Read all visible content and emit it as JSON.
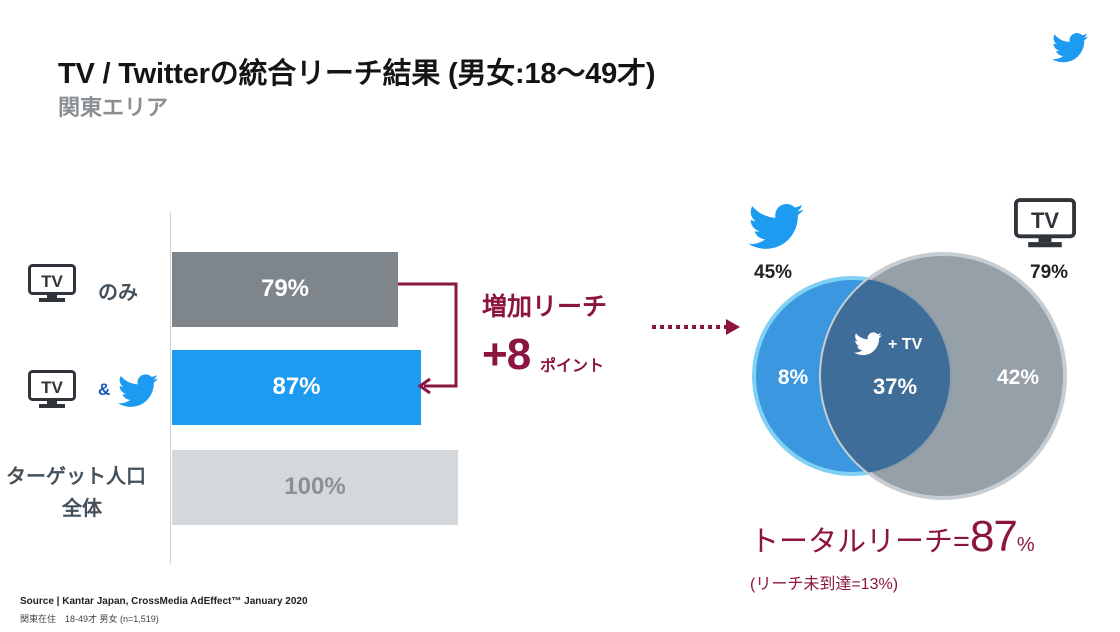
{
  "header": {
    "title": "TV / Twitterの統合リーチ結果 (男女:18〜49才)",
    "subtitle": "関東エリア"
  },
  "icons": {
    "brand": "twitter-bird-icon",
    "tv": "tv-icon"
  },
  "colors": {
    "twitter_blue": "#1d9bf0",
    "tv_gray": "#7e868c",
    "target_gray": "#d4d8db",
    "accent": "#8b1540",
    "venn_twitter": "#3b98e0",
    "venn_tv": "#8e99a2",
    "venn_overlap": "#3f6d99"
  },
  "chart_data": [
    {
      "type": "bar",
      "orientation": "horizontal",
      "categories": [
        "TV のみ",
        "TV & Twitter",
        "ターゲット人口全体"
      ],
      "values": [
        79,
        87,
        100
      ],
      "value_labels": [
        "79%",
        "87%",
        "100%"
      ],
      "category_text": {
        "tv_only": "のみ",
        "tv_twitter_amp": "&",
        "target_line1": "ターゲット人口",
        "target_line2": "全体"
      },
      "xlim": [
        0,
        100
      ],
      "annotation": {
        "label": "増加リーチ",
        "value": "+8",
        "unit": "ポイント"
      }
    },
    {
      "type": "venn",
      "sets": [
        {
          "name": "Twitter",
          "total": 45,
          "total_label": "45%",
          "only": 8,
          "only_label": "8%"
        },
        {
          "name": "TV",
          "total": 79,
          "total_label": "79%",
          "only": 42,
          "only_label": "42%"
        }
      ],
      "overlap": 37,
      "overlap_label": "37%",
      "overlap_caption": "+ TV",
      "tv_icon_text": "TV",
      "total": {
        "label": "トータルリーチ=",
        "value": "87",
        "unit": "%"
      },
      "unreached": "(リーチ未到達=13%)"
    }
  ],
  "footer": {
    "source": "Source | Kantar Japan, CrossMedia AdEffect™   January 2020",
    "note": "関東在住　18-49才 男女 (n=1,519)"
  }
}
